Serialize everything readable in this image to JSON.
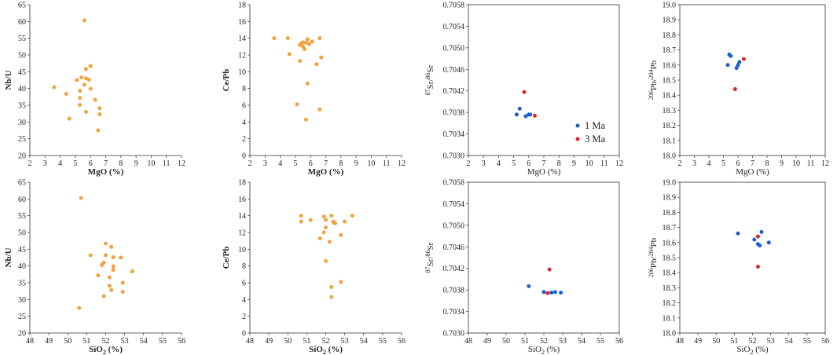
{
  "chart_data": [
    {
      "type": "scatter",
      "xlabel": [
        {
          "t": "MgO (%)"
        }
      ],
      "ylabel": [
        {
          "t": "Nb/U"
        }
      ],
      "xlim": [
        2,
        12
      ],
      "ylim": [
        20,
        65
      ],
      "xticks": [
        "2",
        "3",
        "4",
        "5",
        "6",
        "7",
        "8",
        "9",
        "10",
        "11",
        "12"
      ],
      "yticks": [
        "20",
        "25",
        "30",
        "35",
        "40",
        "45",
        "50",
        "55",
        "60",
        "65"
      ],
      "grid": false,
      "series": [
        {
          "color": "#F2A33D",
          "points": [
            [
              5.6,
              60.3
            ],
            [
              6.0,
              46.7
            ],
            [
              5.7,
              45.8
            ],
            [
              5.4,
              43.3
            ],
            [
              5.7,
              43.0
            ],
            [
              5.1,
              42.5
            ],
            [
              5.9,
              42.6
            ],
            [
              5.6,
              41.1
            ],
            [
              5.3,
              39.3
            ],
            [
              6.0,
              39.9
            ],
            [
              3.6,
              40.4
            ],
            [
              4.4,
              38.4
            ],
            [
              5.3,
              37.2
            ],
            [
              5.3,
              35.1
            ],
            [
              6.3,
              36.6
            ],
            [
              5.7,
              33.0
            ],
            [
              6.6,
              34.1
            ],
            [
              6.6,
              32.3
            ],
            [
              4.6,
              31.0
            ],
            [
              6.5,
              27.5
            ]
          ]
        }
      ]
    },
    {
      "type": "scatter",
      "xlabel": [
        {
          "t": "MgO (%)"
        }
      ],
      "ylabel": [
        {
          "t": "Ce/Pb"
        }
      ],
      "xlim": [
        2,
        12
      ],
      "ylim": [
        0,
        18
      ],
      "xticks": [
        "2",
        "3",
        "4",
        "5",
        "6",
        "7",
        "8",
        "9",
        "10",
        "11",
        "12"
      ],
      "yticks": [
        "0",
        "2",
        "4",
        "6",
        "8",
        "10",
        "12",
        "14",
        "16",
        "18"
      ],
      "grid": false,
      "series": [
        {
          "color": "#F2A33D",
          "points": [
            [
              3.6,
              14.0
            ],
            [
              4.5,
              14.0
            ],
            [
              5.3,
              13.2
            ],
            [
              5.4,
              13.4
            ],
            [
              5.5,
              13.0
            ],
            [
              5.5,
              13.5
            ],
            [
              5.6,
              12.7
            ],
            [
              5.7,
              13.5
            ],
            [
              5.8,
              13.9
            ],
            [
              5.9,
              13.3
            ],
            [
              6.1,
              13.6
            ],
            [
              6.6,
              14.0
            ],
            [
              4.6,
              12.1
            ],
            [
              5.3,
              11.3
            ],
            [
              6.7,
              11.7
            ],
            [
              6.4,
              10.9
            ],
            [
              5.8,
              8.6
            ],
            [
              5.1,
              6.1
            ],
            [
              6.6,
              5.5
            ],
            [
              5.7,
              4.3
            ]
          ]
        }
      ]
    },
    {
      "type": "scatter",
      "xlabel": [
        {
          "t": "MgO (%)"
        }
      ],
      "ylabel": [
        {
          "t": "87",
          "sup": true
        },
        {
          "t": "Sr/"
        },
        {
          "t": "86",
          "sup": true
        },
        {
          "t": "Sr"
        }
      ],
      "xlim": [
        2,
        12
      ],
      "ylim": [
        0.703,
        0.7058
      ],
      "xticks": [
        "2",
        "3",
        "4",
        "5",
        "6",
        "7",
        "8",
        "9",
        "10",
        "11",
        "12"
      ],
      "yticks": [
        "0.7030",
        "0.7034",
        "0.7038",
        "0.7042",
        "0.7046",
        "0.7050",
        "0.7054",
        "0.7058"
      ],
      "grid": false,
      "series": [
        {
          "color": "#1D5FD0",
          "points": [
            [
              5.4,
              0.70387
            ],
            [
              5.2,
              0.70376
            ],
            [
              5.8,
              0.70373
            ],
            [
              6.0,
              0.70376
            ],
            [
              6.1,
              0.70376
            ]
          ]
        },
        {
          "color": "#E3222B",
          "points": [
            [
              5.7,
              0.70418
            ],
            [
              6.4,
              0.70374
            ]
          ]
        }
      ],
      "legend": {
        "position": "bottom-right",
        "entries": [
          {
            "label": "1 Ma",
            "color": "#1D5FD0"
          },
          {
            "label": "3 Ma",
            "color": "#E3222B"
          }
        ]
      }
    },
    {
      "type": "scatter",
      "xlabel": [
        {
          "t": "MgO (%)"
        }
      ],
      "ylabel": [
        {
          "t": "206",
          "sup": true
        },
        {
          "t": "Pb/"
        },
        {
          "t": "204",
          "sup": true
        },
        {
          "t": "Pb"
        }
      ],
      "xlim": [
        2,
        12
      ],
      "ylim": [
        18.0,
        19.0
      ],
      "xticks": [
        "2",
        "3",
        "4",
        "5",
        "6",
        "7",
        "8",
        "9",
        "10",
        "11",
        "12"
      ],
      "yticks": [
        "18.0",
        "18.1",
        "18.2",
        "18.3",
        "18.4",
        "18.5",
        "18.6",
        "18.7",
        "18.8",
        "18.9",
        "19.0"
      ],
      "grid": false,
      "series": [
        {
          "color": "#1D5FD0",
          "points": [
            [
              5.4,
              18.67
            ],
            [
              5.5,
              18.66
            ],
            [
              5.3,
              18.6
            ],
            [
              5.9,
              18.58
            ],
            [
              6.0,
              18.6
            ],
            [
              6.1,
              18.62
            ]
          ]
        },
        {
          "color": "#E3222B",
          "points": [
            [
              6.4,
              18.64
            ],
            [
              5.8,
              18.44
            ]
          ]
        }
      ]
    },
    {
      "type": "scatter",
      "xlabel": [
        {
          "t": "SiO"
        },
        {
          "t": "2",
          "sub": true
        },
        {
          "t": " (%)"
        }
      ],
      "ylabel": [
        {
          "t": "Nb/U"
        }
      ],
      "xlim": [
        48,
        56
      ],
      "ylim": [
        20,
        65
      ],
      "xticks": [
        "48",
        "49",
        "50",
        "51",
        "52",
        "53",
        "54",
        "55",
        "56"
      ],
      "yticks": [
        "20",
        "25",
        "30",
        "35",
        "40",
        "45",
        "50",
        "55",
        "60",
        "65"
      ],
      "grid": false,
      "series": [
        {
          "color": "#F2A33D",
          "points": [
            [
              50.7,
              60.3
            ],
            [
              52.0,
              46.7
            ],
            [
              52.3,
              45.7
            ],
            [
              51.2,
              43.2
            ],
            [
              52.0,
              43.2
            ],
            [
              52.4,
              42.6
            ],
            [
              52.8,
              42.5
            ],
            [
              51.9,
              41.0
            ],
            [
              51.8,
              40.3
            ],
            [
              52.4,
              39.9
            ],
            [
              52.4,
              38.8
            ],
            [
              53.4,
              38.4
            ],
            [
              51.6,
              37.2
            ],
            [
              52.2,
              36.6
            ],
            [
              52.9,
              35.0
            ],
            [
              52.2,
              34.1
            ],
            [
              52.3,
              32.8
            ],
            [
              52.9,
              32.3
            ],
            [
              51.9,
              31.0
            ],
            [
              50.6,
              27.5
            ]
          ]
        }
      ]
    },
    {
      "type": "scatter",
      "xlabel": [
        {
          "t": "SiO"
        },
        {
          "t": "2",
          "sub": true
        },
        {
          "t": " (%)"
        }
      ],
      "ylabel": [
        {
          "t": "Ce/Pb"
        }
      ],
      "xlim": [
        48,
        56
      ],
      "ylim": [
        0,
        18
      ],
      "xticks": [
        "48",
        "49",
        "50",
        "51",
        "52",
        "53",
        "54",
        "55",
        "56"
      ],
      "yticks": [
        "0",
        "2",
        "4",
        "6",
        "8",
        "10",
        "12",
        "14",
        "16",
        "18"
      ],
      "grid": false,
      "series": [
        {
          "color": "#F2A33D",
          "points": [
            [
              50.7,
              14.0
            ],
            [
              50.7,
              13.3
            ],
            [
              51.2,
              13.5
            ],
            [
              51.9,
              13.9
            ],
            [
              52.0,
              13.5
            ],
            [
              52.3,
              14.0
            ],
            [
              52.4,
              13.3
            ],
            [
              52.5,
              13.1
            ],
            [
              52.4,
              13.2
            ],
            [
              53.0,
              13.3
            ],
            [
              53.4,
              14.0
            ],
            [
              52.0,
              12.6
            ],
            [
              51.9,
              12.0
            ],
            [
              51.7,
              11.3
            ],
            [
              52.8,
              11.7
            ],
            [
              52.2,
              10.9
            ],
            [
              52.0,
              8.6
            ],
            [
              52.8,
              6.1
            ],
            [
              52.3,
              5.5
            ],
            [
              52.3,
              4.3
            ]
          ]
        }
      ]
    },
    {
      "type": "scatter",
      "xlabel": [
        {
          "t": "SiO"
        },
        {
          "t": "2",
          "sub": true
        },
        {
          "t": " (%)"
        }
      ],
      "ylabel": [
        {
          "t": "87",
          "sup": true
        },
        {
          "t": "Sr/"
        },
        {
          "t": "86",
          "sup": true
        },
        {
          "t": "Sr"
        }
      ],
      "xlim": [
        48,
        56
      ],
      "ylim": [
        0.703,
        0.7058
      ],
      "xticks": [
        "48",
        "49",
        "50",
        "51",
        "52",
        "53",
        "54",
        "55",
        "56"
      ],
      "yticks": [
        "0.7030",
        "0.7034",
        "0.7038",
        "0.7042",
        "0.7046",
        "0.7050",
        "0.7054",
        "0.7058"
      ],
      "grid": false,
      "series": [
        {
          "color": "#1D5FD0",
          "points": [
            [
              51.2,
              0.70387
            ],
            [
              52.0,
              0.70376
            ],
            [
              52.4,
              0.70375
            ],
            [
              52.6,
              0.70376
            ],
            [
              52.9,
              0.70375
            ]
          ]
        },
        {
          "color": "#E3222B",
          "points": [
            [
              52.3,
              0.70418
            ],
            [
              52.2,
              0.70374
            ]
          ]
        }
      ]
    },
    {
      "type": "scatter",
      "xlabel": [
        {
          "t": "SiO"
        },
        {
          "t": "2",
          "sub": true
        },
        {
          "t": " (%)"
        }
      ],
      "ylabel": [
        {
          "t": "206",
          "sup": true
        },
        {
          "t": "Pb/"
        },
        {
          "t": "204",
          "sup": true
        },
        {
          "t": "Pb"
        }
      ],
      "xlim": [
        48,
        56
      ],
      "ylim": [
        18.0,
        19.0
      ],
      "xticks": [
        "48",
        "49",
        "50",
        "51",
        "52",
        "53",
        "54",
        "55",
        "56"
      ],
      "yticks": [
        "18.0",
        "18.1",
        "18.2",
        "18.3",
        "18.4",
        "18.5",
        "18.6",
        "18.7",
        "18.8",
        "18.9",
        "19.0"
      ],
      "grid": false,
      "series": [
        {
          "color": "#1D5FD0",
          "points": [
            [
              51.2,
              18.66
            ],
            [
              52.1,
              18.62
            ],
            [
              52.5,
              18.67
            ],
            [
              52.3,
              18.59
            ],
            [
              52.4,
              18.58
            ],
            [
              52.9,
              18.6
            ]
          ]
        },
        {
          "color": "#E3222B",
          "points": [
            [
              52.3,
              18.64
            ],
            [
              52.3,
              18.44
            ]
          ]
        }
      ]
    }
  ]
}
